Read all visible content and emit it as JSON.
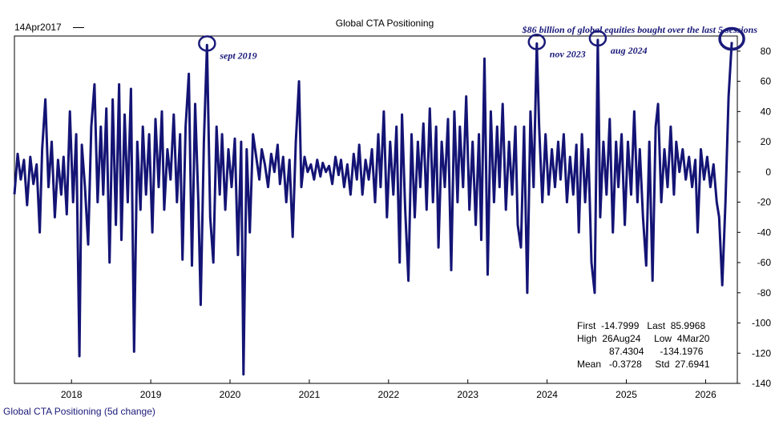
{
  "header": {
    "start_label": "14Apr2017",
    "title": "Global CTA Positioning",
    "headline": "$86 billion of global equities bought over the last 5 sessions"
  },
  "footer": {
    "series_label": "Global CTA Positioning (5d change)"
  },
  "stats": {
    "first_label": "First",
    "first_value": "-14.7999",
    "last_label": "Last",
    "last_value": "85.9968",
    "high_label": "High",
    "high_date": "26Aug24",
    "low_label": "Low",
    "low_date": "4Mar20",
    "high_value": "87.4304",
    "low_value": "-134.1976",
    "mean_label": "Mean",
    "mean_value": "-0.3728",
    "std_label": "Std",
    "std_value": "27.6941"
  },
  "colors": {
    "line": "#141475",
    "annotation": "#1a1a7a",
    "axis": "#000000"
  },
  "chart_data": {
    "type": "line",
    "title": "Global CTA Positioning",
    "xlabel": "",
    "ylabel": "",
    "xlim": [
      2017.28,
      2026.4
    ],
    "ylim": [
      -140,
      90
    ],
    "x_ticks": [
      2018,
      2019,
      2020,
      2021,
      2022,
      2023,
      2024,
      2025,
      2026
    ],
    "y_ticks": [
      80,
      60,
      40,
      20,
      0,
      -20,
      -40,
      -60,
      -80,
      -100,
      -120,
      -140
    ],
    "y_axis_side": "right",
    "grid": false,
    "series": [
      {
        "name": "Global CTA Positioning (5d change)",
        "points": [
          [
            2017.28,
            -14.8
          ],
          [
            2017.32,
            12
          ],
          [
            2017.36,
            -5
          ],
          [
            2017.4,
            8
          ],
          [
            2017.44,
            -22
          ],
          [
            2017.48,
            10
          ],
          [
            2017.52,
            -8
          ],
          [
            2017.56,
            5
          ],
          [
            2017.6,
            -40
          ],
          [
            2017.63,
            15
          ],
          [
            2017.67,
            48
          ],
          [
            2017.71,
            -10
          ],
          [
            2017.75,
            20
          ],
          [
            2017.79,
            -30
          ],
          [
            2017.83,
            8
          ],
          [
            2017.87,
            -15
          ],
          [
            2017.9,
            10
          ],
          [
            2017.94,
            -28
          ],
          [
            2017.98,
            40
          ],
          [
            2018.02,
            -20
          ],
          [
            2018.06,
            25
          ],
          [
            2018.1,
            -122
          ],
          [
            2018.13,
            18
          ],
          [
            2018.17,
            -10
          ],
          [
            2018.21,
            -48
          ],
          [
            2018.25,
            30
          ],
          [
            2018.29,
            58
          ],
          [
            2018.33,
            -20
          ],
          [
            2018.37,
            30
          ],
          [
            2018.4,
            -15
          ],
          [
            2018.44,
            42
          ],
          [
            2018.48,
            -60
          ],
          [
            2018.52,
            48
          ],
          [
            2018.56,
            -35
          ],
          [
            2018.6,
            58
          ],
          [
            2018.63,
            -45
          ],
          [
            2018.67,
            38
          ],
          [
            2018.71,
            -20
          ],
          [
            2018.75,
            55
          ],
          [
            2018.79,
            -119
          ],
          [
            2018.83,
            20
          ],
          [
            2018.87,
            -25
          ],
          [
            2018.9,
            30
          ],
          [
            2018.94,
            -15
          ],
          [
            2018.98,
            25
          ],
          [
            2019.02,
            -40
          ],
          [
            2019.06,
            35
          ],
          [
            2019.1,
            -10
          ],
          [
            2019.14,
            40
          ],
          [
            2019.17,
            -25
          ],
          [
            2019.21,
            15
          ],
          [
            2019.25,
            -5
          ],
          [
            2019.29,
            38
          ],
          [
            2019.33,
            -20
          ],
          [
            2019.37,
            25
          ],
          [
            2019.4,
            -58
          ],
          [
            2019.44,
            30
          ],
          [
            2019.48,
            65
          ],
          [
            2019.52,
            -62
          ],
          [
            2019.56,
            45
          ],
          [
            2019.6,
            -20
          ],
          [
            2019.63,
            -88
          ],
          [
            2019.67,
            20
          ],
          [
            2019.71,
            84
          ],
          [
            2019.75,
            -30
          ],
          [
            2019.79,
            -60
          ],
          [
            2019.83,
            30
          ],
          [
            2019.87,
            -15
          ],
          [
            2019.9,
            25
          ],
          [
            2019.94,
            -25
          ],
          [
            2019.98,
            15
          ],
          [
            2020.02,
            -10
          ],
          [
            2020.06,
            22
          ],
          [
            2020.1,
            -55
          ],
          [
            2020.14,
            20
          ],
          [
            2020.17,
            -134
          ],
          [
            2020.21,
            15
          ],
          [
            2020.25,
            -40
          ],
          [
            2020.29,
            25
          ],
          [
            2020.33,
            10
          ],
          [
            2020.37,
            -5
          ],
          [
            2020.4,
            15
          ],
          [
            2020.44,
            5
          ],
          [
            2020.48,
            -10
          ],
          [
            2020.52,
            12
          ],
          [
            2020.56,
            0
          ],
          [
            2020.6,
            18
          ],
          [
            2020.63,
            -8
          ],
          [
            2020.67,
            10
          ],
          [
            2020.71,
            -20
          ],
          [
            2020.75,
            8
          ],
          [
            2020.79,
            -43
          ],
          [
            2020.83,
            20
          ],
          [
            2020.87,
            60
          ],
          [
            2020.9,
            -10
          ],
          [
            2020.94,
            10
          ],
          [
            2020.98,
            0
          ],
          [
            2021.02,
            5
          ],
          [
            2021.06,
            -5
          ],
          [
            2021.1,
            8
          ],
          [
            2021.14,
            -3
          ],
          [
            2021.17,
            6
          ],
          [
            2021.21,
            0
          ],
          [
            2021.25,
            4
          ],
          [
            2021.29,
            -8
          ],
          [
            2021.33,
            10
          ],
          [
            2021.37,
            -2
          ],
          [
            2021.4,
            8
          ],
          [
            2021.44,
            -10
          ],
          [
            2021.48,
            5
          ],
          [
            2021.52,
            -15
          ],
          [
            2021.56,
            12
          ],
          [
            2021.6,
            -5
          ],
          [
            2021.63,
            18
          ],
          [
            2021.67,
            -15
          ],
          [
            2021.71,
            8
          ],
          [
            2021.75,
            -5
          ],
          [
            2021.79,
            15
          ],
          [
            2021.83,
            -20
          ],
          [
            2021.87,
            25
          ],
          [
            2021.9,
            -10
          ],
          [
            2021.94,
            40
          ],
          [
            2021.98,
            -30
          ],
          [
            2022.02,
            20
          ],
          [
            2022.06,
            -15
          ],
          [
            2022.1,
            30
          ],
          [
            2022.14,
            -60
          ],
          [
            2022.17,
            38
          ],
          [
            2022.21,
            -25
          ],
          [
            2022.25,
            -72
          ],
          [
            2022.29,
            25
          ],
          [
            2022.33,
            -30
          ],
          [
            2022.37,
            20
          ],
          [
            2022.4,
            -10
          ],
          [
            2022.44,
            32
          ],
          [
            2022.48,
            -25
          ],
          [
            2022.52,
            42
          ],
          [
            2022.56,
            -20
          ],
          [
            2022.6,
            30
          ],
          [
            2022.63,
            -50
          ],
          [
            2022.67,
            20
          ],
          [
            2022.71,
            -10
          ],
          [
            2022.75,
            35
          ],
          [
            2022.79,
            -65
          ],
          [
            2022.83,
            40
          ],
          [
            2022.87,
            -20
          ],
          [
            2022.9,
            30
          ],
          [
            2022.94,
            -10
          ],
          [
            2022.98,
            50
          ],
          [
            2023.02,
            -25
          ],
          [
            2023.06,
            20
          ],
          [
            2023.1,
            -35
          ],
          [
            2023.14,
            25
          ],
          [
            2023.17,
            -45
          ],
          [
            2023.21,
            75
          ],
          [
            2023.25,
            -68
          ],
          [
            2023.29,
            40
          ],
          [
            2023.33,
            -20
          ],
          [
            2023.37,
            30
          ],
          [
            2023.4,
            -10
          ],
          [
            2023.44,
            45
          ],
          [
            2023.48,
            -25
          ],
          [
            2023.52,
            20
          ],
          [
            2023.56,
            -15
          ],
          [
            2023.6,
            30
          ],
          [
            2023.63,
            -35
          ],
          [
            2023.67,
            -50
          ],
          [
            2023.71,
            30
          ],
          [
            2023.75,
            -80
          ],
          [
            2023.79,
            40
          ],
          [
            2023.83,
            -10
          ],
          [
            2023.87,
            85
          ],
          [
            2023.9,
            30
          ],
          [
            2023.94,
            -20
          ],
          [
            2023.98,
            25
          ],
          [
            2024.02,
            -15
          ],
          [
            2024.06,
            15
          ],
          [
            2024.1,
            -10
          ],
          [
            2024.14,
            20
          ],
          [
            2024.17,
            -5
          ],
          [
            2024.21,
            25
          ],
          [
            2024.25,
            -20
          ],
          [
            2024.29,
            10
          ],
          [
            2024.33,
            -15
          ],
          [
            2024.37,
            18
          ],
          [
            2024.4,
            -40
          ],
          [
            2024.44,
            25
          ],
          [
            2024.48,
            -20
          ],
          [
            2024.52,
            15
          ],
          [
            2024.56,
            -60
          ],
          [
            2024.6,
            -80
          ],
          [
            2024.64,
            87.4
          ],
          [
            2024.67,
            -30
          ],
          [
            2024.71,
            20
          ],
          [
            2024.75,
            -15
          ],
          [
            2024.79,
            35
          ],
          [
            2024.83,
            -40
          ],
          [
            2024.87,
            20
          ],
          [
            2024.9,
            -10
          ],
          [
            2024.94,
            25
          ],
          [
            2024.98,
            -35
          ],
          [
            2025.02,
            20
          ],
          [
            2025.06,
            -15
          ],
          [
            2025.1,
            40
          ],
          [
            2025.14,
            -20
          ],
          [
            2025.17,
            15
          ],
          [
            2025.21,
            -30
          ],
          [
            2025.25,
            -62
          ],
          [
            2025.29,
            20
          ],
          [
            2025.33,
            -72
          ],
          [
            2025.37,
            30
          ],
          [
            2025.4,
            45
          ],
          [
            2025.44,
            -20
          ],
          [
            2025.48,
            15
          ],
          [
            2025.52,
            -10
          ],
          [
            2025.56,
            30
          ],
          [
            2025.6,
            -15
          ],
          [
            2025.63,
            20
          ],
          [
            2025.67,
            0
          ],
          [
            2025.71,
            15
          ],
          [
            2025.75,
            -5
          ],
          [
            2025.79,
            10
          ],
          [
            2025.83,
            -10
          ],
          [
            2025.87,
            8
          ],
          [
            2025.9,
            -40
          ],
          [
            2025.94,
            15
          ],
          [
            2025.98,
            -5
          ],
          [
            2026.02,
            10
          ],
          [
            2026.06,
            -10
          ],
          [
            2026.1,
            5
          ],
          [
            2026.14,
            -20
          ],
          [
            2026.17,
            -30
          ],
          [
            2026.21,
            -75
          ],
          [
            2026.25,
            -20
          ],
          [
            2026.29,
            50
          ],
          [
            2026.33,
            86
          ]
        ]
      }
    ],
    "annotations": [
      {
        "label": "sept 2019",
        "x": 2019.71,
        "y": 84
      },
      {
        "label": "nov 2023",
        "x": 2023.87,
        "y": 85
      },
      {
        "label": "aug 2024",
        "x": 2024.64,
        "y": 87.4
      },
      {
        "label": "",
        "x": 2026.33,
        "y": 86
      }
    ]
  }
}
